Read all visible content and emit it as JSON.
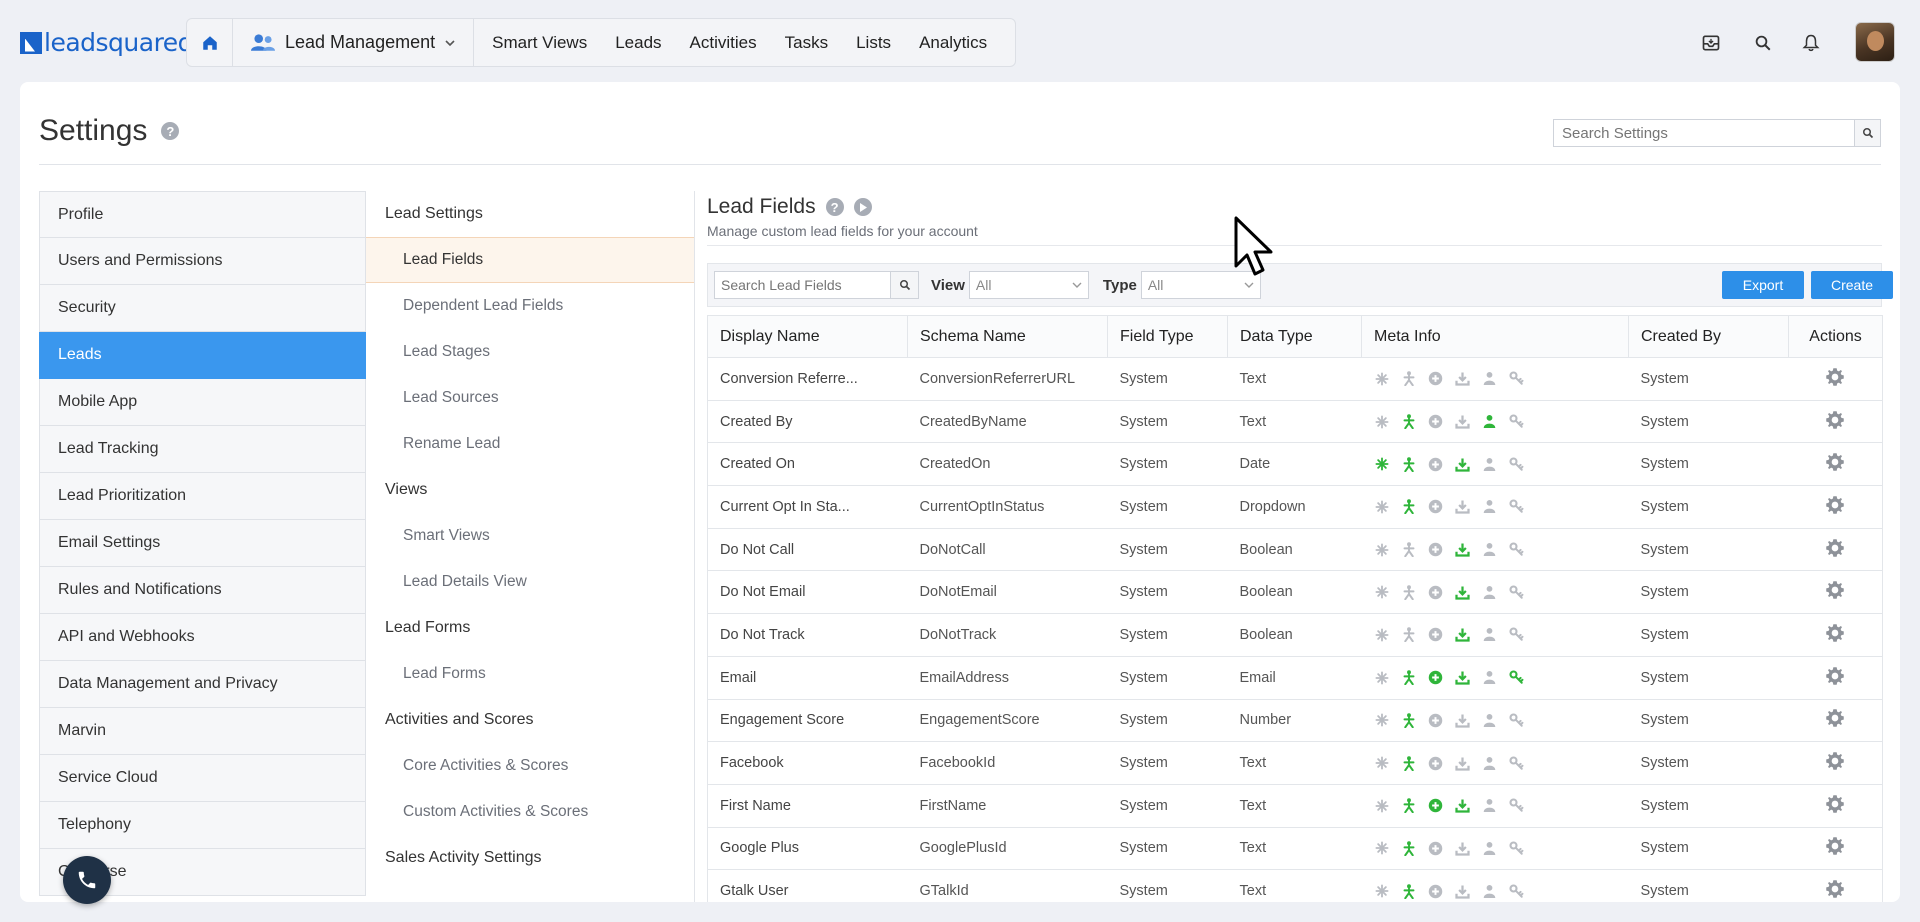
{
  "brand": {
    "logo_text": "leadsquared"
  },
  "topnav": {
    "module": "Lead Management",
    "items": [
      "Smart Views",
      "Leads",
      "Activities",
      "Tasks",
      "Lists",
      "Analytics"
    ]
  },
  "settings": {
    "title": "Settings",
    "search_placeholder": "Search Settings"
  },
  "menu1": [
    {
      "label": "Profile",
      "active": false
    },
    {
      "label": "Users and Permissions",
      "active": false
    },
    {
      "label": "Security",
      "active": false
    },
    {
      "label": "Leads",
      "active": true
    },
    {
      "label": "Mobile App",
      "active": false
    },
    {
      "label": "Lead Tracking",
      "active": false
    },
    {
      "label": "Lead Prioritization",
      "active": false
    },
    {
      "label": "Email Settings",
      "active": false
    },
    {
      "label": "Rules and Notifications",
      "active": false
    },
    {
      "label": "API and Webhooks",
      "active": false
    },
    {
      "label": "Data Management and Privacy",
      "active": false
    },
    {
      "label": "Marvin",
      "active": false
    },
    {
      "label": "Service Cloud",
      "active": false
    },
    {
      "label": "Telephony",
      "active": false
    },
    {
      "label": "Converse",
      "active": false
    }
  ],
  "menu2": [
    {
      "type": "head",
      "label": "Lead Settings"
    },
    {
      "type": "item",
      "label": "Lead Fields",
      "active": true
    },
    {
      "type": "item",
      "label": "Dependent Lead Fields"
    },
    {
      "type": "item",
      "label": "Lead Stages"
    },
    {
      "type": "item",
      "label": "Lead Sources"
    },
    {
      "type": "item",
      "label": "Rename Lead"
    },
    {
      "type": "head",
      "label": "Views"
    },
    {
      "type": "item",
      "label": "Smart Views"
    },
    {
      "type": "item",
      "label": "Lead Details View"
    },
    {
      "type": "head",
      "label": "Lead Forms"
    },
    {
      "type": "item",
      "label": "Lead Forms"
    },
    {
      "type": "head",
      "label": "Activities and Scores"
    },
    {
      "type": "item",
      "label": "Core Activities & Scores"
    },
    {
      "type": "item",
      "label": "Custom Activities & Scores"
    },
    {
      "type": "head",
      "label": "Sales Activity Settings"
    }
  ],
  "lead_fields": {
    "title": "Lead Fields",
    "subtitle": "Manage custom lead fields for your account",
    "search_placeholder": "Search Lead Fields",
    "view_label": "View",
    "view_value": "All",
    "type_label": "Type",
    "type_value": "All",
    "export_label": "Export",
    "create_label": "Create",
    "columns": [
      "Display Name",
      "Schema Name",
      "Field Type",
      "Data Type",
      "Meta Info",
      "Created By",
      "Actions"
    ],
    "meta_icon_names": [
      "mandatory-icon",
      "person-icon",
      "plus-circle-icon",
      "download-icon",
      "user-icon",
      "key-icon"
    ],
    "active_color": "#2fb53a",
    "inactive_color": "#b9bcc2",
    "rows": [
      {
        "display": "Conversion Referre...",
        "schema": "ConversionReferrerURL",
        "field_type": "System",
        "data_type": "Text",
        "meta": [
          0,
          0,
          0,
          0,
          0,
          0
        ],
        "created_by": "System"
      },
      {
        "display": "Created By",
        "schema": "CreatedByName",
        "field_type": "System",
        "data_type": "Text",
        "meta": [
          0,
          1,
          0,
          0,
          1,
          0
        ],
        "created_by": "System"
      },
      {
        "display": "Created On",
        "schema": "CreatedOn",
        "field_type": "System",
        "data_type": "Date",
        "meta": [
          1,
          1,
          0,
          1,
          0,
          0
        ],
        "created_by": "System"
      },
      {
        "display": "Current Opt In Sta...",
        "schema": "CurrentOptInStatus",
        "field_type": "System",
        "data_type": "Dropdown",
        "meta": [
          0,
          1,
          0,
          0,
          0,
          0
        ],
        "created_by": "System"
      },
      {
        "display": "Do Not Call",
        "schema": "DoNotCall",
        "field_type": "System",
        "data_type": "Boolean",
        "meta": [
          0,
          0,
          0,
          1,
          0,
          0
        ],
        "created_by": "System"
      },
      {
        "display": "Do Not Email",
        "schema": "DoNotEmail",
        "field_type": "System",
        "data_type": "Boolean",
        "meta": [
          0,
          0,
          0,
          1,
          0,
          0
        ],
        "created_by": "System"
      },
      {
        "display": "Do Not Track",
        "schema": "DoNotTrack",
        "field_type": "System",
        "data_type": "Boolean",
        "meta": [
          0,
          0,
          0,
          1,
          0,
          0
        ],
        "created_by": "System"
      },
      {
        "display": "Email",
        "schema": "EmailAddress",
        "field_type": "System",
        "data_type": "Email",
        "meta": [
          0,
          1,
          1,
          1,
          0,
          1
        ],
        "created_by": "System"
      },
      {
        "display": "Engagement Score",
        "schema": "EngagementScore",
        "field_type": "System",
        "data_type": "Number",
        "meta": [
          0,
          1,
          0,
          0,
          0,
          0
        ],
        "created_by": "System"
      },
      {
        "display": "Facebook",
        "schema": "FacebookId",
        "field_type": "System",
        "data_type": "Text",
        "meta": [
          0,
          1,
          0,
          0,
          0,
          0
        ],
        "created_by": "System"
      },
      {
        "display": "First Name",
        "schema": "FirstName",
        "field_type": "System",
        "data_type": "Text",
        "meta": [
          0,
          1,
          1,
          1,
          0,
          0
        ],
        "created_by": "System"
      },
      {
        "display": "Google Plus",
        "schema": "GooglePlusId",
        "field_type": "System",
        "data_type": "Text",
        "meta": [
          0,
          1,
          0,
          0,
          0,
          0
        ],
        "created_by": "System"
      },
      {
        "display": "Gtalk User",
        "schema": "GTalkId",
        "field_type": "System",
        "data_type": "Text",
        "meta": [
          0,
          1,
          0,
          0,
          0,
          0
        ],
        "created_by": "System"
      }
    ]
  }
}
